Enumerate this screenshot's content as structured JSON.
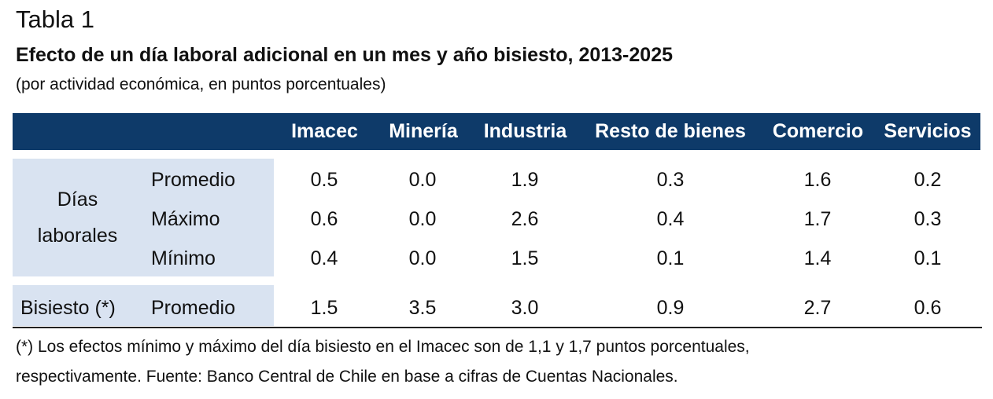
{
  "table": {
    "number": "Tabla 1",
    "title": "Efecto de un día laboral adicional en un mes y año bisiesto, 2013-2025",
    "units": "(por actividad económica, en puntos porcentuales)",
    "columns": [
      "Imacec",
      "Minería",
      "Industria",
      "Resto de bienes",
      "Comercio",
      "Servicios"
    ],
    "groups": [
      {
        "label_line1": "Días",
        "label_line2": "laborales",
        "rows": [
          {
            "stat": "Promedio",
            "values": [
              "0.5",
              "0.0",
              "1.9",
              "0.3",
              "1.6",
              "0.2"
            ]
          },
          {
            "stat": "Máximo",
            "values": [
              "0.6",
              "0.0",
              "2.6",
              "0.4",
              "1.7",
              "0.3"
            ]
          },
          {
            "stat": "Mínimo",
            "values": [
              "0.4",
              "0.0",
              "1.5",
              "0.1",
              "1.4",
              "0.1"
            ]
          }
        ]
      },
      {
        "label_line1": "Bisiesto (*)",
        "rows": [
          {
            "stat": "Promedio",
            "values": [
              "1.5",
              "3.5",
              "3.0",
              "0.9",
              "2.7",
              "0.6"
            ]
          }
        ]
      }
    ],
    "note_line1": "(*) Los efectos mínimo y máximo del día bisiesto en el Imacec son de 1,1 y 1,7 puntos porcentuales,",
    "note_line2": "respectivamente. Fuente: Banco Central de Chile en base a cifras de Cuentas Nacionales."
  }
}
